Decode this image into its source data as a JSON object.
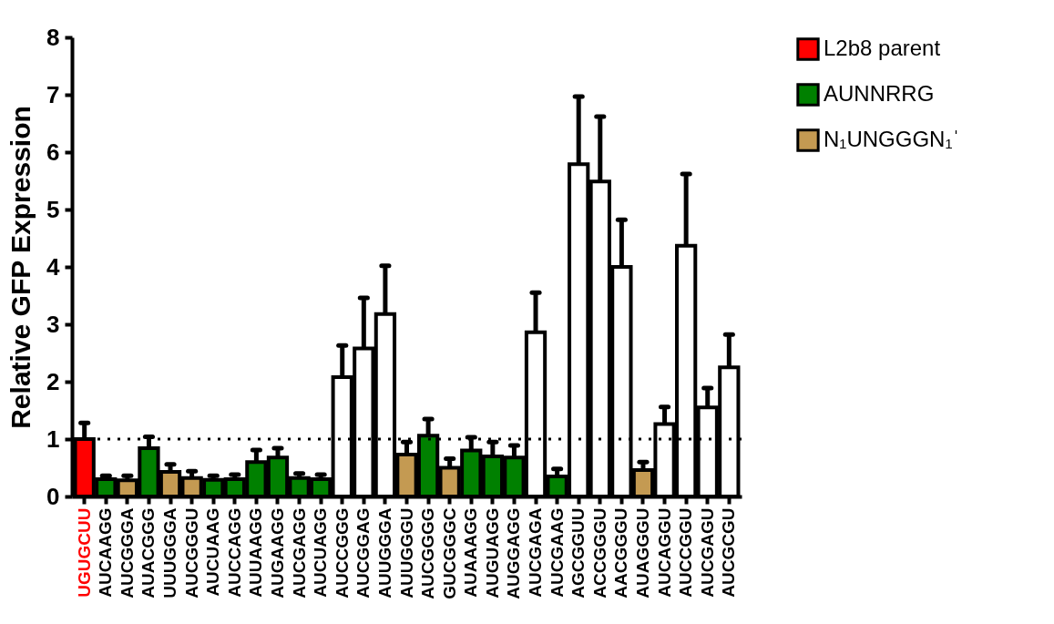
{
  "chart_data": {
    "type": "bar",
    "ylabel": "Relative GFP Expression",
    "categories": [
      "UGUGCUU",
      "AUCAAGG",
      "AUCGGGA",
      "AUACGGG",
      "UUUGGGA",
      "AUCGGGU",
      "AUCUAAG",
      "AUCCAGG",
      "AUUAAGG",
      "AUGAAGG",
      "AUCGAGG",
      "AUCUAGG",
      "AUCCGGG",
      "AUCGGAG",
      "AUUGGGA",
      "AUUGGGU",
      "AUCGGGG",
      "GUCGGGC",
      "AUAAAGG",
      "AUGUAGG",
      "AUGGAGG",
      "AUCGAGA",
      "AUCGAAG",
      "AGCGGUU",
      "ACCGGGU",
      "AACGGGU",
      "AUAGGGU",
      "AUCAGGU",
      "AUCCGGU",
      "AUCGAGU",
      "AUCGCGU"
    ],
    "series": [
      {
        "name": "L2b8 parent",
        "color": "#ff0000",
        "values": [
          1.0,
          null,
          null,
          null,
          null,
          null,
          null,
          null,
          null,
          null,
          null,
          null,
          null,
          null,
          null,
          null,
          null,
          null,
          null,
          null,
          null,
          null,
          null,
          null,
          null,
          null,
          null,
          null,
          null,
          null,
          null
        ],
        "errors": [
          0.28,
          null,
          null,
          null,
          null,
          null,
          null,
          null,
          null,
          null,
          null,
          null,
          null,
          null,
          null,
          null,
          null,
          null,
          null,
          null,
          null,
          null,
          null,
          null,
          null,
          null,
          null,
          null,
          null,
          null,
          null
        ]
      },
      {
        "name": "AUNNRRG",
        "color": "#008000",
        "values": [
          null,
          0.3,
          null,
          0.84,
          null,
          null,
          0.29,
          0.3,
          0.6,
          0.68,
          0.32,
          0.3,
          null,
          null,
          null,
          null,
          1.06,
          null,
          0.8,
          0.7,
          0.68,
          null,
          0.35,
          null,
          null,
          null,
          null,
          null,
          null,
          null,
          null
        ],
        "errors": [
          null,
          0.06,
          null,
          0.2,
          null,
          null,
          0.07,
          0.08,
          0.21,
          0.16,
          0.08,
          0.08,
          null,
          null,
          null,
          null,
          0.29,
          null,
          0.23,
          0.25,
          0.21,
          null,
          0.13,
          null,
          null,
          null,
          null,
          null,
          null,
          null,
          null
        ]
      },
      {
        "name": "N₁UNGGGN₁ˈ",
        "color": "#c49a52",
        "values": [
          null,
          null,
          0.28,
          null,
          0.43,
          0.32,
          null,
          null,
          null,
          null,
          null,
          null,
          null,
          null,
          null,
          0.73,
          null,
          0.5,
          null,
          null,
          null,
          null,
          null,
          null,
          null,
          null,
          0.46,
          null,
          null,
          null,
          null
        ],
        "errors": [
          null,
          null,
          0.08,
          null,
          0.13,
          0.12,
          null,
          null,
          null,
          null,
          null,
          null,
          null,
          null,
          null,
          0.22,
          null,
          0.16,
          null,
          null,
          null,
          null,
          null,
          null,
          null,
          null,
          0.14,
          null,
          null,
          null,
          null
        ]
      },
      {
        "color": "#ffffff",
        "values": [
          null,
          null,
          null,
          null,
          null,
          null,
          null,
          null,
          null,
          null,
          null,
          null,
          2.08,
          2.58,
          3.18,
          null,
          null,
          null,
          null,
          null,
          null,
          2.86,
          null,
          5.79,
          5.49,
          4.0,
          null,
          1.26,
          4.37,
          1.55,
          2.25
        ],
        "errors": [
          null,
          null,
          null,
          null,
          null,
          null,
          null,
          null,
          null,
          null,
          null,
          null,
          0.55,
          0.88,
          0.84,
          null,
          null,
          null,
          null,
          null,
          null,
          0.69,
          null,
          1.18,
          1.13,
          0.82,
          null,
          0.3,
          1.25,
          0.34,
          0.57
        ]
      }
    ],
    "ylim": [
      0,
      8
    ],
    "yticks": [
      0,
      1,
      2,
      3,
      4,
      5,
      6,
      7,
      8
    ],
    "ref_lines": [
      {
        "axis": "y",
        "value": 1,
        "line_style": "dotted"
      }
    ],
    "legend": "top right",
    "grid": false
  }
}
